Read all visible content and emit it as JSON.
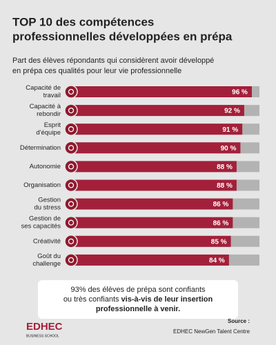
{
  "chart_data": {
    "type": "bar",
    "title": [
      "TOP 10 des compétences",
      "professionnelles développées en prépa"
    ],
    "subtitle": [
      "Part des élèves répondants qui considèrent avoir développé",
      "en prépa ces qualités pour leur vie professionnelle"
    ],
    "categories": [
      [
        "Capacité de",
        "travail"
      ],
      [
        "Capacité à",
        "rebondir"
      ],
      [
        "Esprit",
        "d'équipe"
      ],
      [
        "Détermination"
      ],
      [
        "Autonomie"
      ],
      [
        "Organisation"
      ],
      [
        "Gestion",
        "du stress"
      ],
      [
        "Gestion de",
        "ses capacités"
      ],
      [
        "Créativité"
      ],
      [
        "Goût du",
        "challenge"
      ]
    ],
    "values": [
      96,
      92,
      91,
      90,
      88,
      88,
      86,
      86,
      85,
      84
    ],
    "value_labels": [
      "96 %",
      "92 %",
      "91 %",
      "90 %",
      "88 %",
      "88 %",
      "86 %",
      "86 %",
      "85 %",
      "84 %"
    ],
    "xlim": [
      0,
      100
    ],
    "color": "#a3203a",
    "track_color": "#b3b3b3"
  },
  "box": {
    "lines": [
      {
        "normal": "93% des élèves de prépa sont confiants"
      },
      {
        "normal": "ou très confiants",
        "bold": "vis-à-vis de leur insertion"
      },
      {
        "bold": "professionnelle à venir."
      }
    ]
  },
  "footer": {
    "logo": "EDHEC",
    "logo_sub": "BUSINESS SCHOOL",
    "source_label": "Source :",
    "source": "EDHEC NewGen Talent Centre"
  }
}
